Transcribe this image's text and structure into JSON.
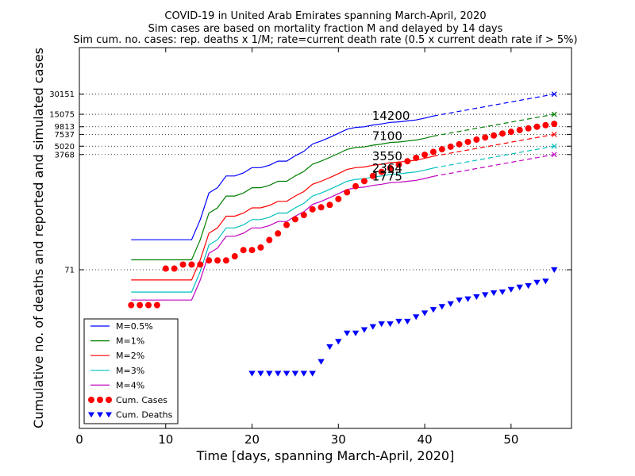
{
  "chart_data": {
    "type": "line",
    "title_lines": [
      "COVID-19 in United Arab Emirates spanning March-April, 2020",
      "Sim cases are based on mortality fraction M and delayed by 14 days",
      "Sim cum. no. cases: rep. deaths x 1/M; rate=current death rate (0.5 x current death rate if > 5%)"
    ],
    "xlabel": "Time [days, spanning March-April, 2020]",
    "ylabel": "Cumulative no. of deaths and reported and simulated cases",
    "xlim": [
      0,
      57
    ],
    "ylim": [
      0.3,
      150000
    ],
    "y_scale": "log",
    "x_ticks": [
      0,
      10,
      20,
      30,
      40,
      50
    ],
    "x_tick_labels": [
      "0",
      "10",
      "20",
      "30",
      "40",
      "50"
    ],
    "y_ticks": [
      30151,
      15075,
      9813,
      7537,
      5020,
      3768,
      71
    ],
    "y_tick_labels": [
      "30151",
      "15075",
      "9813",
      "7537",
      "5020",
      "3768",
      "71"
    ],
    "grid": "dotted horizontal at y ticks",
    "legend_placement": "lower-left",
    "annotations": [
      {
        "text": "14200",
        "x": 35,
        "y": 14200
      },
      {
        "text": "7100",
        "x": 35,
        "y": 7100
      },
      {
        "text": "3550",
        "x": 35,
        "y": 3550
      },
      {
        "text": "2364",
        "x": 35,
        "y": 2364
      },
      {
        "text": "1775",
        "x": 35,
        "y": 1775
      }
    ],
    "projection": {
      "x_start": 41,
      "x_end": 55
    },
    "series": [
      {
        "name": "M=0.5%",
        "color": "#0000ff",
        "style": "line",
        "x": [
          6,
          7,
          8,
          9,
          10,
          11,
          12,
          13,
          14,
          15,
          16,
          17,
          18,
          19,
          20,
          21,
          22,
          23,
          24,
          25,
          26,
          27,
          28,
          29,
          30,
          31,
          32,
          33,
          34,
          35,
          36,
          37,
          38,
          39,
          40,
          41
        ],
        "values": [
          200,
          200,
          200,
          200,
          200,
          200,
          200,
          200,
          400,
          1000,
          1200,
          1800,
          1800,
          2000,
          2400,
          2400,
          2600,
          3000,
          3000,
          3600,
          4200,
          5400,
          6000,
          6800,
          7800,
          9000,
          9600,
          9800,
          10400,
          10800,
          11400,
          11600,
          12000,
          12400,
          13200,
          14200
        ],
        "projection_end": 30151
      },
      {
        "name": "M=1%",
        "color": "#008000",
        "style": "line",
        "x": [
          6,
          7,
          8,
          9,
          10,
          11,
          12,
          13,
          14,
          15,
          16,
          17,
          18,
          19,
          20,
          21,
          22,
          23,
          24,
          25,
          26,
          27,
          28,
          29,
          30,
          31,
          32,
          33,
          34,
          35,
          36,
          37,
          38,
          39,
          40,
          41
        ],
        "values": [
          100,
          100,
          100,
          100,
          100,
          100,
          100,
          100,
          200,
          500,
          600,
          900,
          900,
          1000,
          1200,
          1200,
          1300,
          1500,
          1500,
          1800,
          2100,
          2700,
          3000,
          3400,
          3900,
          4500,
          4800,
          4900,
          5200,
          5400,
          5700,
          5800,
          6000,
          6200,
          6600,
          7100
        ],
        "projection_end": 15075
      },
      {
        "name": "M=2%",
        "color": "#ff0000",
        "style": "line",
        "x": [
          6,
          7,
          8,
          9,
          10,
          11,
          12,
          13,
          14,
          15,
          16,
          17,
          18,
          19,
          20,
          21,
          22,
          23,
          24,
          25,
          26,
          27,
          28,
          29,
          30,
          31,
          32,
          33,
          34,
          35,
          36,
          37,
          38,
          39,
          40,
          41
        ],
        "values": [
          50,
          50,
          50,
          50,
          50,
          50,
          50,
          50,
          100,
          250,
          300,
          450,
          450,
          500,
          600,
          600,
          650,
          750,
          750,
          900,
          1050,
          1350,
          1500,
          1700,
          1950,
          2250,
          2400,
          2450,
          2600,
          2700,
          2850,
          2900,
          3000,
          3100,
          3300,
          3550
        ],
        "projection_end": 7537
      },
      {
        "name": "M=3%",
        "color": "#00bfbf",
        "style": "line",
        "x": [
          6,
          7,
          8,
          9,
          10,
          11,
          12,
          13,
          14,
          15,
          16,
          17,
          18,
          19,
          20,
          21,
          22,
          23,
          24,
          25,
          26,
          27,
          28,
          29,
          30,
          31,
          32,
          33,
          34,
          35,
          36,
          37,
          38,
          39,
          40,
          41
        ],
        "values": [
          33,
          33,
          33,
          33,
          33,
          33,
          33,
          33,
          67,
          167,
          200,
          300,
          300,
          333,
          400,
          400,
          433,
          500,
          500,
          600,
          700,
          900,
          1000,
          1133,
          1300,
          1500,
          1600,
          1633,
          1733,
          1800,
          1900,
          1933,
          2000,
          2067,
          2200,
          2364
        ],
        "projection_end": 5020
      },
      {
        "name": "M=4%",
        "color": "#bf00bf",
        "style": "line",
        "x": [
          6,
          7,
          8,
          9,
          10,
          11,
          12,
          13,
          14,
          15,
          16,
          17,
          18,
          19,
          20,
          21,
          22,
          23,
          24,
          25,
          26,
          27,
          28,
          29,
          30,
          31,
          32,
          33,
          34,
          35,
          36,
          37,
          38,
          39,
          40,
          41
        ],
        "values": [
          25,
          25,
          25,
          25,
          25,
          25,
          25,
          25,
          50,
          125,
          150,
          225,
          225,
          250,
          300,
          300,
          325,
          375,
          375,
          450,
          525,
          675,
          750,
          850,
          975,
          1125,
          1200,
          1225,
          1300,
          1350,
          1425,
          1450,
          1500,
          1550,
          1650,
          1775
        ],
        "projection_end": 3768
      },
      {
        "name": "Cum. Cases",
        "color": "#ff0000",
        "style": "dots",
        "x": [
          6,
          7,
          8,
          9,
          10,
          11,
          12,
          13,
          14,
          15,
          16,
          17,
          18,
          19,
          20,
          21,
          22,
          23,
          24,
          25,
          26,
          27,
          28,
          29,
          30,
          31,
          32,
          33,
          34,
          35,
          36,
          37,
          38,
          39,
          40,
          41,
          42,
          43,
          44,
          45,
          46,
          47,
          48,
          49,
          50,
          51,
          52,
          53,
          54,
          55
        ],
        "values": [
          21,
          21,
          21,
          21,
          74,
          74,
          85,
          85,
          85,
          98,
          98,
          98,
          113,
          140,
          140,
          153,
          198,
          248,
          333,
          405,
          468,
          570,
          611,
          664,
          814,
          1024,
          1264,
          1505,
          1799,
          2076,
          2359,
          2659,
          2990,
          3360,
          3736,
          4123,
          4521,
          4933,
          5365,
          5825,
          6302,
          6781,
          7265,
          7755,
          8238,
          8756,
          9281,
          9813,
          10349,
          10839
        ]
      },
      {
        "name": "Cum. Deaths",
        "color": "#0000ff",
        "style": "triangles",
        "x": [
          20,
          21,
          22,
          23,
          24,
          25,
          26,
          27,
          28,
          29,
          30,
          31,
          32,
          33,
          34,
          35,
          36,
          37,
          38,
          39,
          40,
          41,
          42,
          43,
          44,
          45,
          46,
          47,
          48,
          49,
          50,
          51,
          52,
          53,
          54,
          55
        ],
        "values": [
          2,
          2,
          2,
          2,
          2,
          2,
          2,
          2,
          3,
          5,
          6,
          8,
          8,
          9,
          10,
          11,
          11,
          12,
          12,
          14,
          16,
          18,
          20,
          22,
          25,
          26,
          28,
          30,
          32,
          33,
          36,
          39,
          41,
          46,
          48,
          71
        ]
      }
    ]
  }
}
